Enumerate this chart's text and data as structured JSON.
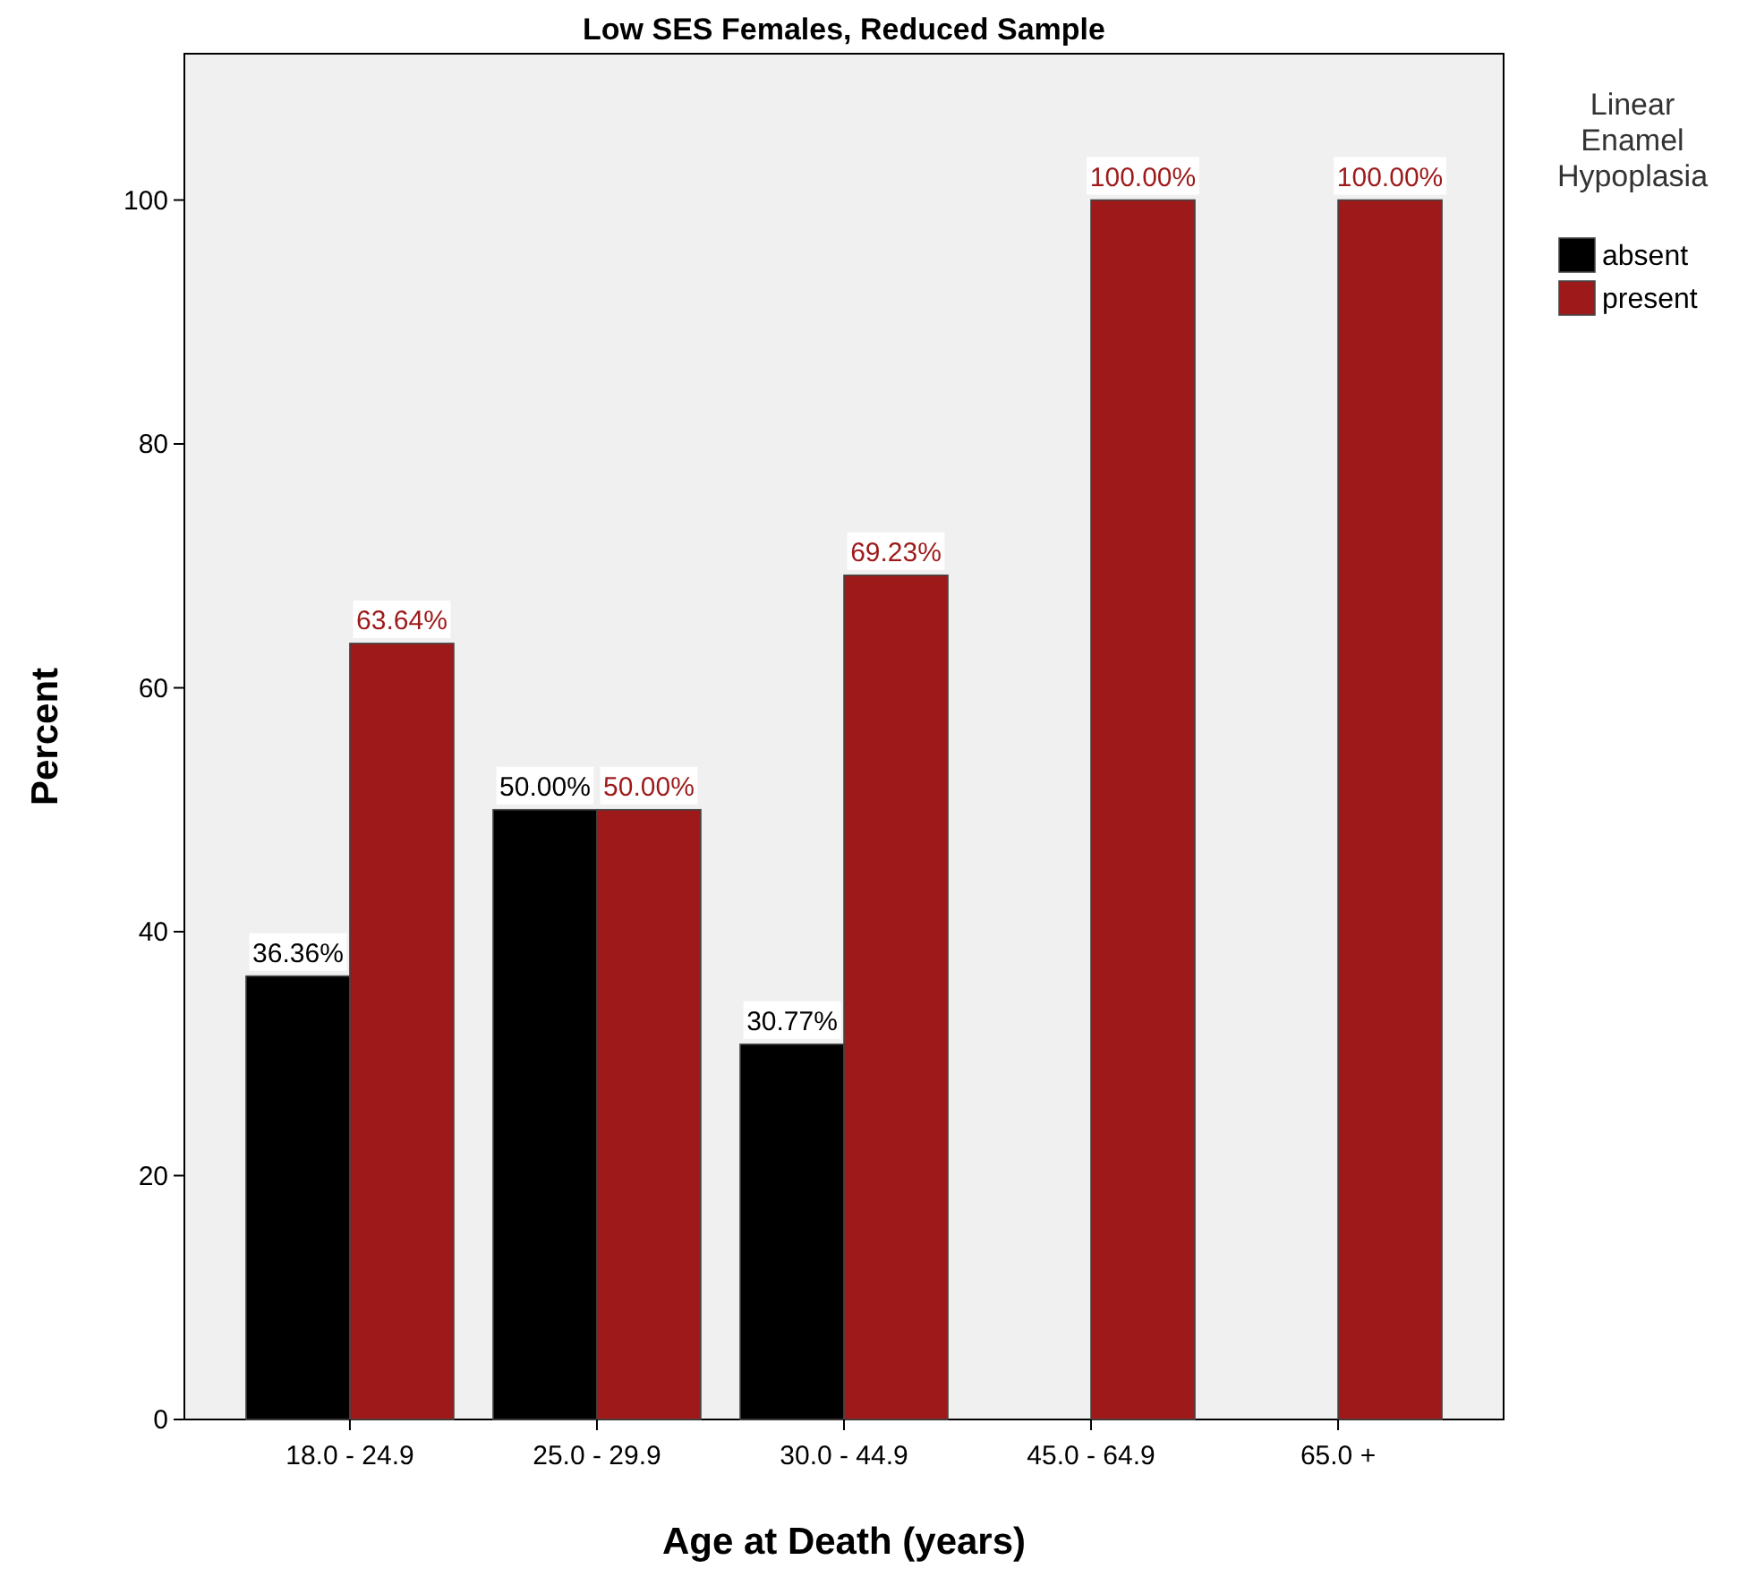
{
  "chart_data": {
    "type": "bar",
    "title": "Low SES Females, Reduced Sample",
    "xlabel": "Age at Death (years)",
    "ylabel": "Percent",
    "legend_title": "Linear Enamel Hypoplasia",
    "categories": [
      "18.0 - 24.9",
      "25.0 - 29.9",
      "30.0 - 44.9",
      "45.0 - 64.9",
      "65.0 +"
    ],
    "series": [
      {
        "name": "absent",
        "color": "#000000",
        "values": [
          36.36,
          50,
          30.77,
          null,
          null
        ],
        "value_labels": [
          "36.36%",
          "50.00%",
          "30.77%",
          null,
          null
        ]
      },
      {
        "name": "present",
        "color": "#9e1a1a",
        "values": [
          63.64,
          50,
          69.23,
          100,
          100
        ],
        "value_labels": [
          "63.64%",
          "50.00%",
          "69.23%",
          "100.00%",
          "100.00%"
        ]
      }
    ],
    "ylim": [
      0,
      112
    ],
    "yticks": [
      0,
      20,
      40,
      60,
      80,
      100
    ],
    "grid": false,
    "legend": "top right"
  }
}
